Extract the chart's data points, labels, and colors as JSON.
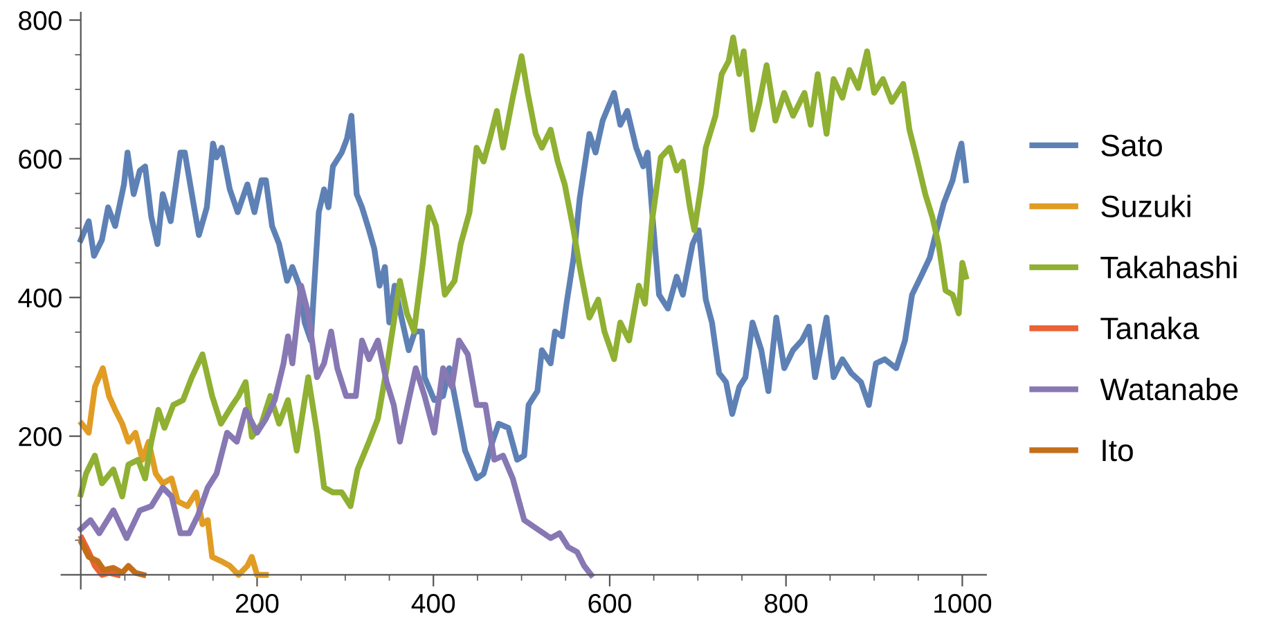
{
  "chart_data": {
    "type": "line",
    "legend": "right",
    "grid": false,
    "marker": "none",
    "line_style": "solid",
    "xlim": [
      -22,
      1027
    ],
    "ylim": [
      -20,
      811
    ],
    "xticks": [
      {
        "value": 50,
        "label": null
      },
      {
        "value": 100,
        "label": null
      },
      {
        "value": 150,
        "label": null
      },
      200,
      {
        "value": 250,
        "label": null
      },
      {
        "value": 300,
        "label": null
      },
      {
        "value": 350,
        "label": null
      },
      400,
      {
        "value": 450,
        "label": null
      },
      {
        "value": 500,
        "label": null
      },
      {
        "value": 550,
        "label": null
      },
      600,
      {
        "value": 650,
        "label": null
      },
      {
        "value": 700,
        "label": null
      },
      {
        "value": 750,
        "label": null
      },
      800,
      {
        "value": 850,
        "label": null
      },
      {
        "value": 900,
        "label": null
      },
      {
        "value": 950,
        "label": null
      },
      1000
    ],
    "yticks": [
      {
        "value": 50,
        "label": null
      },
      {
        "value": 100,
        "label": null
      },
      {
        "value": 150,
        "label": null
      },
      200,
      {
        "value": 250,
        "label": null
      },
      {
        "value": 300,
        "label": null
      },
      {
        "value": 350,
        "label": null
      },
      400,
      {
        "value": 450,
        "label": null
      },
      {
        "value": 500,
        "label": null
      },
      {
        "value": 550,
        "label": null
      },
      600,
      {
        "value": 650,
        "label": null
      },
      {
        "value": 700,
        "label": null
      },
      {
        "value": 750,
        "label": null
      },
      800
    ],
    "series": [
      {
        "name": "Sato",
        "color": "#5e81b5",
        "x": [
          0,
          9,
          15,
          24,
          31,
          39,
          49,
          53,
          60,
          67,
          73,
          80,
          87,
          93,
          102,
          113,
          118,
          126,
          134,
          143,
          150,
          154,
          160,
          169,
          178,
          189,
          197,
          205,
          210,
          217,
          225,
          234,
          240,
          248,
          254,
          261,
          270,
          276,
          281,
          286,
          296,
          302,
          307,
          313,
          319,
          327,
          333,
          339,
          345,
          350,
          356,
          365,
          372,
          379,
          387,
          390,
          401,
          411,
          418,
          426,
          436,
          449,
          457,
          467,
          474,
          485,
          495,
          503,
          508,
          518,
          523,
          533,
          538,
          546,
          551,
          559,
          566,
          577,
          584,
          592,
          605,
          612,
          620,
          630,
          638,
          643,
          649,
          656,
          666,
          676,
          683,
          694,
          701,
          709,
          716,
          724,
          732,
          739,
          747,
          754,
          762,
          772,
          780,
          789,
          798,
          808,
          818,
          826,
          833,
          846,
          854,
          864,
          874,
          885,
          894,
          902,
          912,
          925,
          935,
          943,
          953,
          963,
          971,
          979,
          989,
          996,
          999,
          1004
        ],
        "values": [
          483,
          510,
          460,
          483,
          530,
          503,
          563,
          609,
          549,
          583,
          589,
          516,
          477,
          549,
          510,
          609,
          609,
          549,
          490,
          530,
          622,
          602,
          616,
          556,
          523,
          563,
          523,
          569,
          569,
          503,
          477,
          424,
          444,
          417,
          364,
          338,
          523,
          556,
          530,
          589,
          609,
          629,
          662,
          549,
          530,
          497,
          470,
          417,
          444,
          364,
          417,
          364,
          324,
          351,
          351,
          285,
          252,
          258,
          298,
          245,
          179,
          139,
          146,
          192,
          218,
          212,
          166,
          172,
          245,
          265,
          324,
          305,
          351,
          344,
          391,
          457,
          543,
          636,
          609,
          655,
          695,
          649,
          669,
          616,
          589,
          609,
          510,
          404,
          384,
          430,
          404,
          477,
          497,
          397,
          364,
          291,
          278,
          232,
          271,
          285,
          364,
          324,
          265,
          371,
          298,
          324,
          338,
          358,
          285,
          371,
          285,
          311,
          291,
          278,
          245,
          305,
          311,
          298,
          338,
          404,
          430,
          457,
          497,
          536,
          569,
          609,
          622,
          569
        ]
      },
      {
        "name": "Suzuki",
        "color": "#e19c24",
        "x": [
          1,
          9,
          16,
          25,
          32,
          39,
          47,
          54,
          62,
          70,
          77,
          85,
          93,
          103,
          110,
          121,
          131,
          138,
          144,
          149,
          159,
          169,
          179,
          189,
          194,
          200,
          210
        ],
        "values": [
          218,
          205,
          271,
          298,
          258,
          238,
          218,
          192,
          205,
          166,
          192,
          146,
          132,
          139,
          106,
          99,
          119,
          73,
          79,
          26,
          20,
          13,
          0,
          13,
          26,
          0,
          0
        ]
      },
      {
        "name": "Takahashi",
        "color": "#8fb032",
        "x": [
          0,
          6,
          16,
          24,
          37,
          47,
          54,
          65,
          73,
          80,
          88,
          95,
          105,
          116,
          126,
          138,
          149,
          159,
          172,
          179,
          187,
          194,
          205,
          215,
          225,
          235,
          245,
          258,
          268,
          276,
          286,
          296,
          306,
          314,
          327,
          337,
          347,
          355,
          362,
          370,
          378,
          388,
          395,
          403,
          413,
          424,
          431,
          441,
          449,
          457,
          464,
          472,
          479,
          490,
          500,
          507,
          516,
          523,
          533,
          541,
          549,
          559,
          566,
          577,
          587,
          594,
          605,
          612,
          622,
          633,
          640,
          648,
          658,
          668,
          676,
          683,
          691,
          696,
          704,
          709,
          720,
          727,
          735,
          740,
          747,
          752,
          762,
          770,
          778,
          788,
          798,
          808,
          821,
          828,
          836,
          846,
          854,
          864,
          872,
          882,
          892,
          900,
          910,
          920,
          933,
          940,
          948,
          958,
          966,
          973,
          981,
          989,
          996,
          1000,
          1004
        ],
        "values": [
          116,
          146,
          172,
          132,
          152,
          113,
          159,
          166,
          139,
          192,
          238,
          212,
          245,
          252,
          285,
          318,
          258,
          218,
          245,
          258,
          278,
          199,
          218,
          258,
          218,
          252,
          179,
          285,
          205,
          126,
          119,
          119,
          99,
          152,
          192,
          225,
          298,
          364,
          424,
          377,
          351,
          450,
          530,
          503,
          404,
          424,
          477,
          523,
          616,
          596,
          629,
          669,
          616,
          688,
          748,
          695,
          636,
          616,
          642,
          596,
          563,
          497,
          444,
          371,
          397,
          351,
          311,
          364,
          338,
          417,
          391,
          510,
          602,
          616,
          583,
          596,
          530,
          497,
          563,
          616,
          662,
          722,
          741,
          775,
          722,
          755,
          642,
          682,
          735,
          655,
          695,
          662,
          695,
          649,
          722,
          636,
          715,
          688,
          728,
          702,
          755,
          695,
          715,
          682,
          708,
          642,
          602,
          549,
          516,
          477,
          410,
          404,
          377,
          450,
          430
        ]
      },
      {
        "name": "Tanaka",
        "color": "#eb6235",
        "x": [
          1,
          9,
          16,
          24,
          32,
          42
        ],
        "values": [
          53,
          33,
          13,
          0,
          3,
          0
        ]
      },
      {
        "name": "Watanabe",
        "color": "#8778b3",
        "x": [
          0,
          11,
          21,
          37,
          52,
          67,
          80,
          93,
          103,
          113,
          123,
          133,
          144,
          154,
          166,
          177,
          187,
          200,
          210,
          220,
          230,
          235,
          240,
          250,
          258,
          268,
          276,
          284,
          291,
          301,
          312,
          319,
          327,
          337,
          347,
          355,
          362,
          372,
          380,
          390,
          401,
          411,
          421,
          429,
          439,
          449,
          459,
          469,
          479,
          490,
          503,
          518,
          533,
          543,
          553,
          563,
          571,
          579
        ],
        "values": [
          66,
          79,
          60,
          93,
          53,
          93,
          99,
          126,
          113,
          60,
          60,
          86,
          126,
          146,
          205,
          192,
          238,
          205,
          225,
          252,
          305,
          344,
          305,
          417,
          377,
          285,
          305,
          351,
          298,
          258,
          258,
          338,
          311,
          338,
          278,
          245,
          192,
          252,
          298,
          258,
          205,
          298,
          271,
          338,
          318,
          245,
          245,
          166,
          172,
          139,
          79,
          66,
          53,
          60,
          40,
          33,
          13,
          0
        ]
      },
      {
        "name": "Ito",
        "color": "#c56e1a",
        "x": [
          1,
          9,
          19,
          26,
          37,
          47,
          54,
          62,
          71
        ],
        "values": [
          46,
          26,
          20,
          7,
          10,
          3,
          13,
          3,
          0
        ]
      }
    ]
  }
}
